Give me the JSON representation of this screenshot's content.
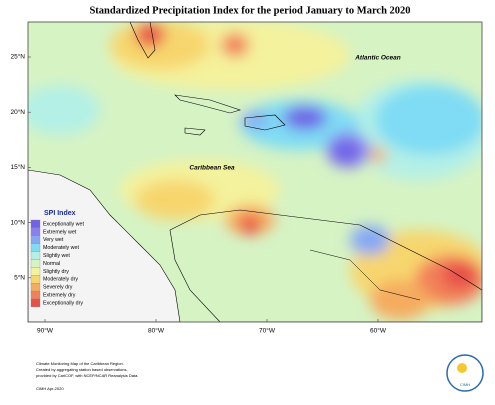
{
  "header": {
    "title": "Standardized Precipitation Index for the period January to March 2020"
  },
  "places": [
    "Atlantic Ocean",
    "Caribbean Sea"
  ],
  "lat_ticks": [
    "25°N",
    "20°N",
    "15°N",
    "10°N",
    "5°N"
  ],
  "lon_ticks": [
    "90°W",
    "80°W",
    "70°W",
    "60°W"
  ],
  "legend": {
    "title": "SPI Index",
    "items": [
      {
        "label": "Exceptionally wet",
        "color": "#6f63e6"
      },
      {
        "label": "Extremely wet",
        "color": "#8a7ff0"
      },
      {
        "label": "Very wet",
        "color": "#86a8f4"
      },
      {
        "label": "Moderately wet",
        "color": "#7fdcf4"
      },
      {
        "label": "Slightly wet",
        "color": "#b4f0e6"
      },
      {
        "label": "Normal",
        "color": "#d6f3c4"
      },
      {
        "label": "Slightly dry",
        "color": "#f4f29c"
      },
      {
        "label": "Moderately dry",
        "color": "#f7d66e"
      },
      {
        "label": "Severely dry",
        "color": "#f5ac5e"
      },
      {
        "label": "Extremely dry",
        "color": "#f2805a"
      },
      {
        "label": "Exceptionally dry",
        "color": "#e8504a"
      }
    ]
  },
  "footer": {
    "notes": [
      "Climate Monitoring Map of the Caribbean Region.",
      "Created by aggregating station based observations,",
      "provided by CariCOF, with NCEP/NCAR Reanalysis Data."
    ],
    "credit": "CIMH Apr-2020",
    "logo": "CIMH"
  }
}
